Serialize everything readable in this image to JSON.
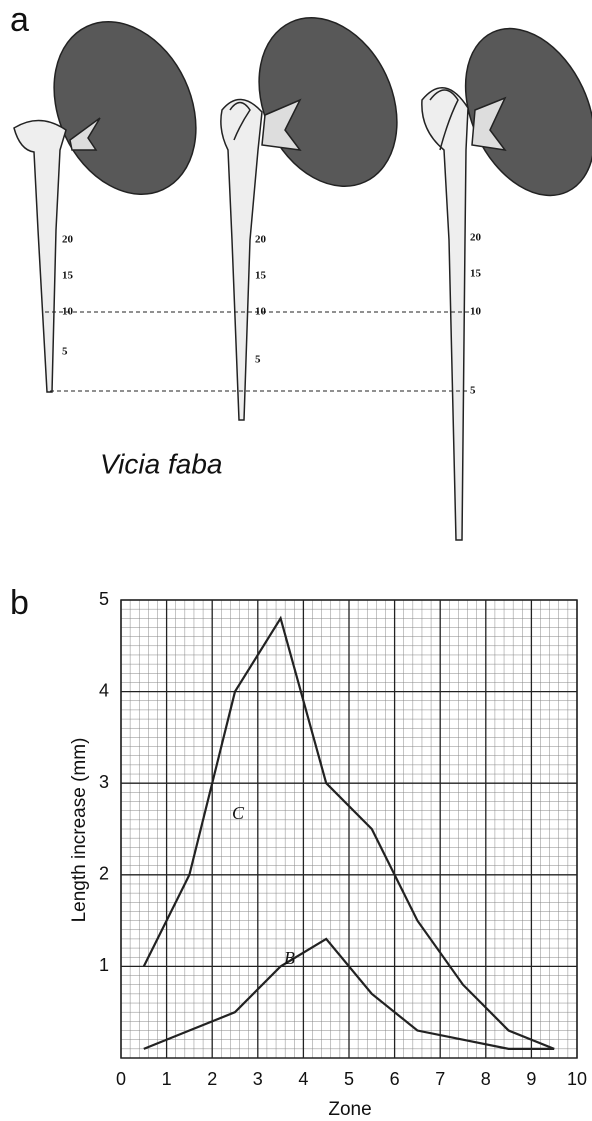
{
  "figure_a": {
    "label": "a",
    "species": "Vicia faba",
    "roots": [
      {
        "scale": [
          20,
          15,
          10,
          5
        ]
      },
      {
        "scale": [
          20,
          15,
          10,
          5
        ]
      },
      {
        "scale": [
          20,
          15,
          10,
          5
        ]
      }
    ]
  },
  "chart_data": {
    "type": "line",
    "label": "b",
    "x_label": "Zone",
    "y_label": "Length increase (mm)",
    "x": [
      0.5,
      1.5,
      2.5,
      3.5,
      4.5,
      5.5,
      6.5,
      7.5,
      8.5,
      9.5
    ],
    "series": [
      {
        "name": "C",
        "color": "#222222",
        "values": [
          1.0,
          2.0,
          4.0,
          4.8,
          3.0,
          2.5,
          1.5,
          0.8,
          0.3,
          0.1
        ]
      },
      {
        "name": "B",
        "color": "#222222",
        "values": [
          0.1,
          0.3,
          0.5,
          1.0,
          1.3,
          0.7,
          0.3,
          0.2,
          0.1,
          0.1
        ]
      }
    ],
    "xlim": [
      0,
      10
    ],
    "ylim": [
      0,
      5
    ],
    "xticks": [
      0,
      1,
      2,
      3,
      4,
      5,
      6,
      7,
      8,
      9,
      10
    ],
    "yticks": [
      1,
      2,
      3,
      4,
      5
    ],
    "grid": true
  }
}
